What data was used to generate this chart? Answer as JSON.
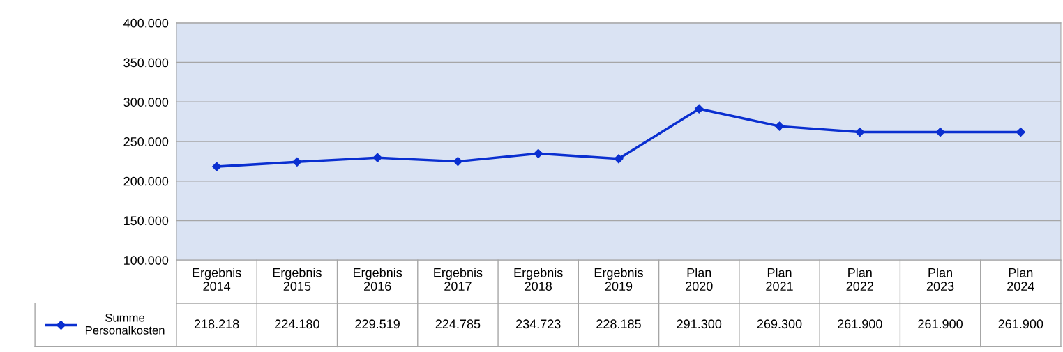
{
  "chart_data": {
    "type": "line",
    "categories": [
      "Ergebnis\n2014",
      "Ergebnis\n2015",
      "Ergebnis\n2016",
      "Ergebnis\n2017",
      "Ergebnis\n2018",
      "Ergebnis\n2019",
      "Plan\n2020",
      "Plan\n2021",
      "Plan\n2022",
      "Plan\n2023",
      "Plan\n2024"
    ],
    "series": [
      {
        "name": "Summe\nPersonalkosten",
        "color": "#0a2fd0",
        "values": [
          218218,
          224180,
          229519,
          224785,
          234723,
          228185,
          291300,
          269300,
          261900,
          261900,
          261900
        ],
        "value_labels": [
          "218.218",
          "224.180",
          "229.519",
          "224.785",
          "234.723",
          "228.185",
          "291.300",
          "269.300",
          "261.900",
          "261.900",
          "261.900"
        ]
      }
    ],
    "ylim": [
      100000,
      400000
    ],
    "yticks": [
      {
        "value": 100000,
        "label": "100.000"
      },
      {
        "value": 150000,
        "label": "150.000"
      },
      {
        "value": 200000,
        "label": "200.000"
      },
      {
        "value": 250000,
        "label": "250.000"
      },
      {
        "value": 300000,
        "label": "300.000"
      },
      {
        "value": 350000,
        "label": "350.000"
      },
      {
        "value": 400000,
        "label": "400.000"
      }
    ],
    "grid": "y",
    "legend": "bottom",
    "marker": "diamond",
    "line_style": "solid"
  }
}
